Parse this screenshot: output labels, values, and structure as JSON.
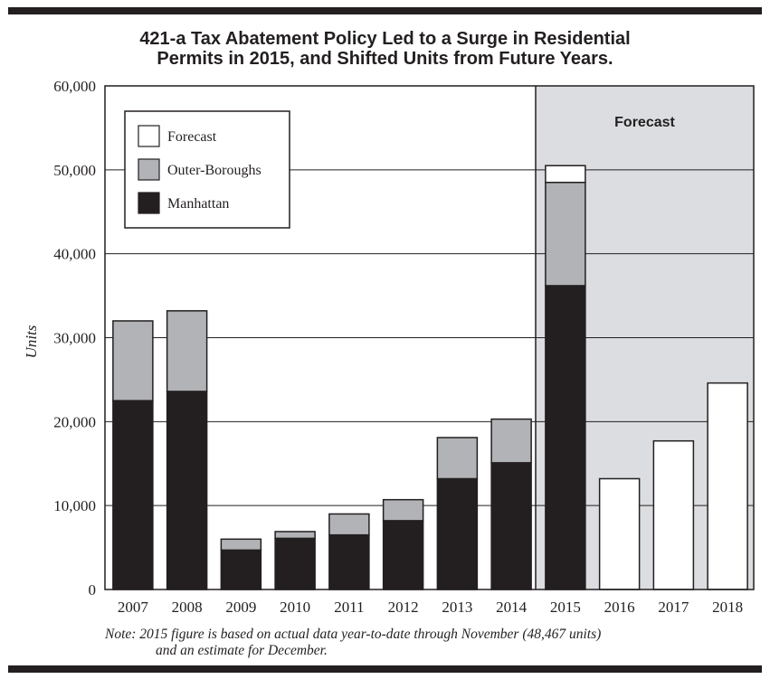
{
  "title_line1": "421-a Tax Abatement Policy Led to a Surge in Residential",
  "title_line2": "Permits in 2015, and Shifted Units from Future Years.",
  "note_line1": "Note:  2015 figure is based on actual data year-to-date through November (48,467 units)",
  "note_line2": "and an estimate for December.",
  "colors": {
    "manhattan": "#231f20",
    "outer_boroughs": "#b1b3b6",
    "forecast": "#ffffff",
    "forecast_region": "#dcdde0"
  },
  "chart_data": {
    "type": "bar",
    "stacked": true,
    "title": "421-a Tax Abatement Policy Led to a Surge in Residential Permits in 2015, and Shifted Units from Future Years.",
    "xlabel": "",
    "ylabel": "Units",
    "ylim": [
      0,
      60000
    ],
    "yticks": [
      "0",
      "10,000",
      "20,000",
      "30,000",
      "40,000",
      "50,000",
      "60,000"
    ],
    "grid": true,
    "legend_position": "top-left",
    "forecast_region_label": "Forecast",
    "forecast_region_start": "2015",
    "categories": [
      "2007",
      "2008",
      "2009",
      "2010",
      "2011",
      "2012",
      "2013",
      "2014",
      "2015",
      "2016",
      "2017",
      "2018"
    ],
    "series": [
      {
        "name": "Manhattan",
        "values": [
          22500,
          23600,
          4700,
          6100,
          6500,
          8200,
          13200,
          15100,
          36200,
          0,
          0,
          0
        ]
      },
      {
        "name": "Outer-Boroughs",
        "values": [
          9500,
          9600,
          1300,
          800,
          2500,
          2500,
          4900,
          5200,
          12300,
          0,
          0,
          0
        ]
      },
      {
        "name": "Forecast",
        "values": [
          0,
          0,
          0,
          0,
          0,
          0,
          0,
          0,
          2000,
          13200,
          17700,
          24600
        ]
      }
    ],
    "legend": [
      "Forecast",
      "Outer-Boroughs",
      "Manhattan"
    ]
  }
}
